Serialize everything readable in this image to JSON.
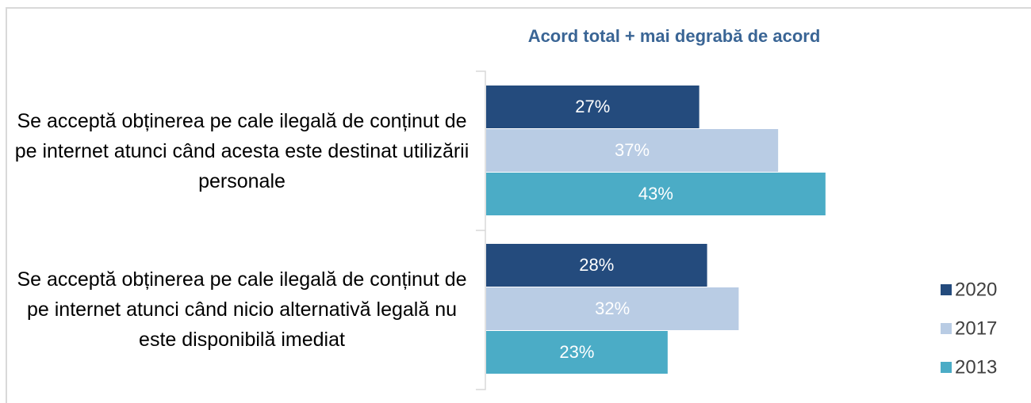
{
  "chart_data": {
    "type": "bar",
    "orientation": "horizontal",
    "title": "Acord total + mai degrabă de acord",
    "categories": [
      "Se acceptă obținerea pe cale ilegală de conținut de pe internet atunci când acesta este destinat utilizării personale",
      "Se acceptă obținerea pe cale ilegală de conținut de pe internet atunci când nicio alternativă legală nu este disponibilă imediat"
    ],
    "series": [
      {
        "name": "2020",
        "color": "#244b7d",
        "values": [
          27,
          28
        ],
        "value_labels": [
          "27%",
          "28%"
        ]
      },
      {
        "name": "2017",
        "color": "#b9cce4",
        "values": [
          37,
          32
        ],
        "value_labels": [
          "37%",
          "32%"
        ]
      },
      {
        "name": "2013",
        "color": "#4bacc6",
        "values": [
          43,
          23
        ],
        "value_labels": [
          "43%",
          "23%"
        ]
      }
    ],
    "legend": "right"
  }
}
